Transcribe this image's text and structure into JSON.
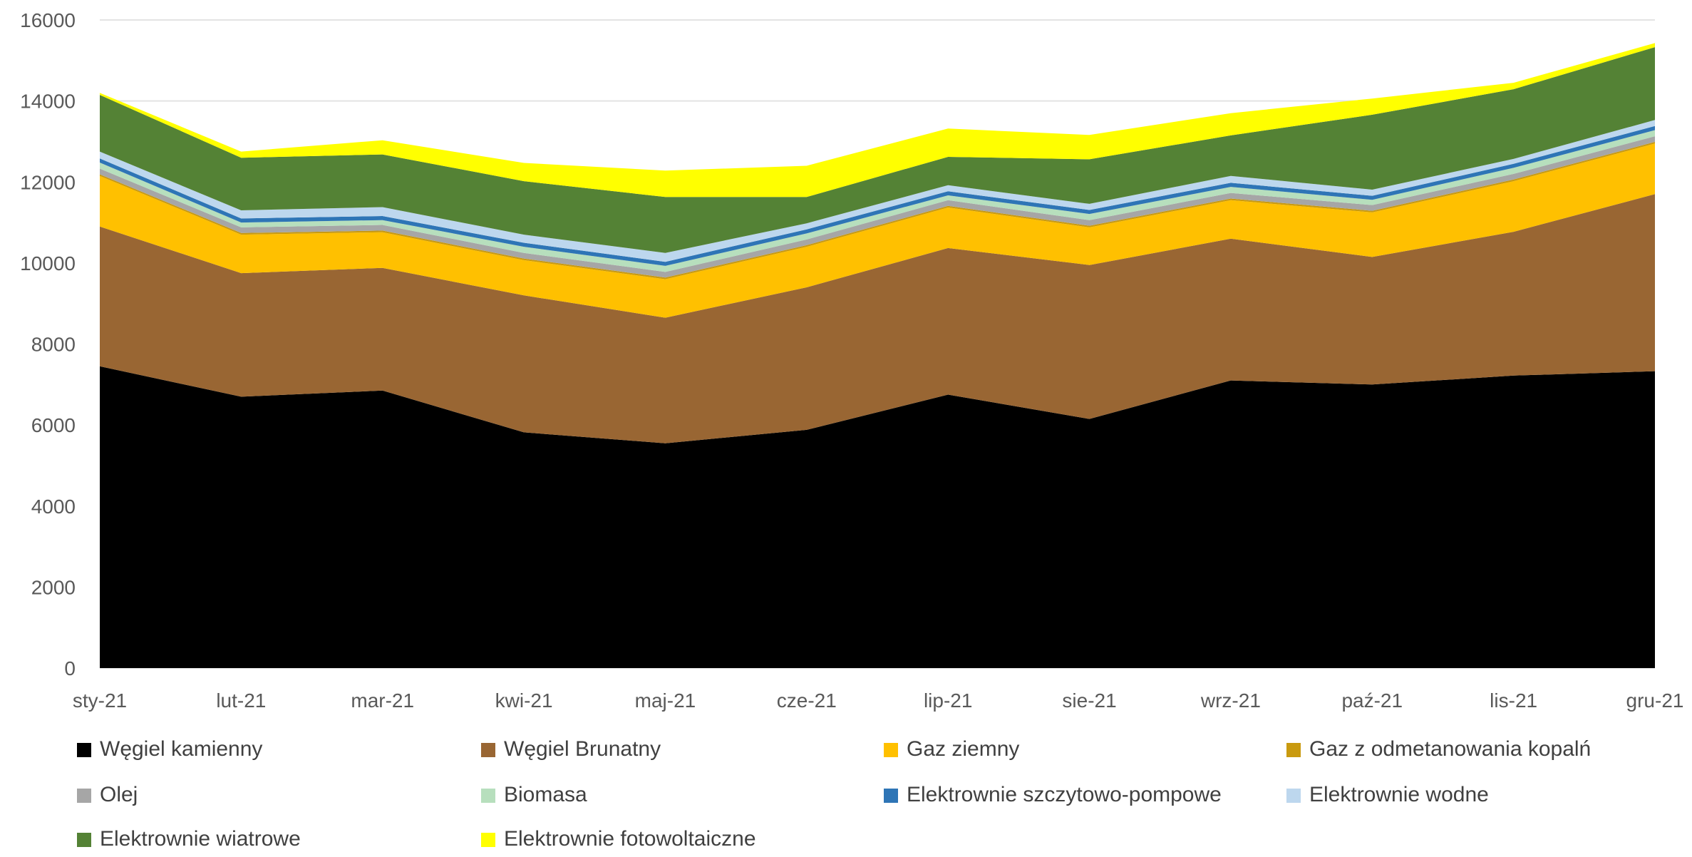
{
  "chart_data": {
    "type": "area",
    "stacked": true,
    "title": "",
    "xlabel": "",
    "ylabel": "",
    "ylim": [
      0,
      16000
    ],
    "yticks": [
      0,
      2000,
      4000,
      6000,
      8000,
      10000,
      12000,
      14000,
      16000
    ],
    "grid": true,
    "legend_position": "bottom",
    "categories": [
      "sty-21",
      "lut-21",
      "mar-21",
      "kwi-21",
      "maj-21",
      "cze-21",
      "lip-21",
      "sie-21",
      "wrz-21",
      "paź-21",
      "lis-21",
      "gru-21"
    ],
    "series": [
      {
        "name": "Węgiel kamienny",
        "color": "#000000",
        "values": [
          7450,
          6700,
          6850,
          5820,
          5550,
          5880,
          6750,
          6150,
          7100,
          7000,
          7220,
          7330
        ]
      },
      {
        "name": "Węgiel Brunatny",
        "color": "#996633",
        "values": [
          3450,
          3050,
          3030,
          3380,
          3100,
          3520,
          3620,
          3800,
          3500,
          3150,
          3550,
          4370
        ]
      },
      {
        "name": "Gaz ziemny",
        "color": "#ffc000",
        "values": [
          1250,
          950,
          880,
          870,
          950,
          1000,
          1000,
          930,
          950,
          1100,
          1250,
          1250
        ]
      },
      {
        "name": "Gaz z odmetanowania kopalń",
        "color": "#c99a0f",
        "values": [
          40,
          40,
          40,
          40,
          40,
          40,
          40,
          40,
          40,
          40,
          40,
          40
        ]
      },
      {
        "name": "Olej",
        "color": "#a6a6a6",
        "values": [
          140,
          140,
          140,
          140,
          140,
          140,
          140,
          140,
          140,
          140,
          140,
          140
        ]
      },
      {
        "name": "Biomasa",
        "color": "#b7dfbd",
        "values": [
          150,
          120,
          120,
          150,
          150,
          150,
          120,
          150,
          150,
          130,
          150,
          150
        ]
      },
      {
        "name": "Elektrownie szczytowo-pompowe",
        "color": "#2e75b6",
        "values": [
          100,
          100,
          100,
          100,
          100,
          100,
          100,
          100,
          100,
          100,
          100,
          100
        ]
      },
      {
        "name": "Elektrownie wodne",
        "color": "#bdd7ee",
        "values": [
          170,
          200,
          220,
          200,
          220,
          150,
          150,
          150,
          170,
          150,
          120,
          150
        ]
      },
      {
        "name": "Elektrownie wiatrowe",
        "color": "#548235",
        "values": [
          1400,
          1300,
          1300,
          1320,
          1380,
          650,
          700,
          1100,
          1000,
          1850,
          1720,
          1800
        ]
      },
      {
        "name": "Elektrownie fotowoltaiczne",
        "color": "#ffff00",
        "values": [
          50,
          150,
          350,
          450,
          650,
          770,
          700,
          600,
          550,
          400,
          160,
          100
        ]
      }
    ]
  }
}
